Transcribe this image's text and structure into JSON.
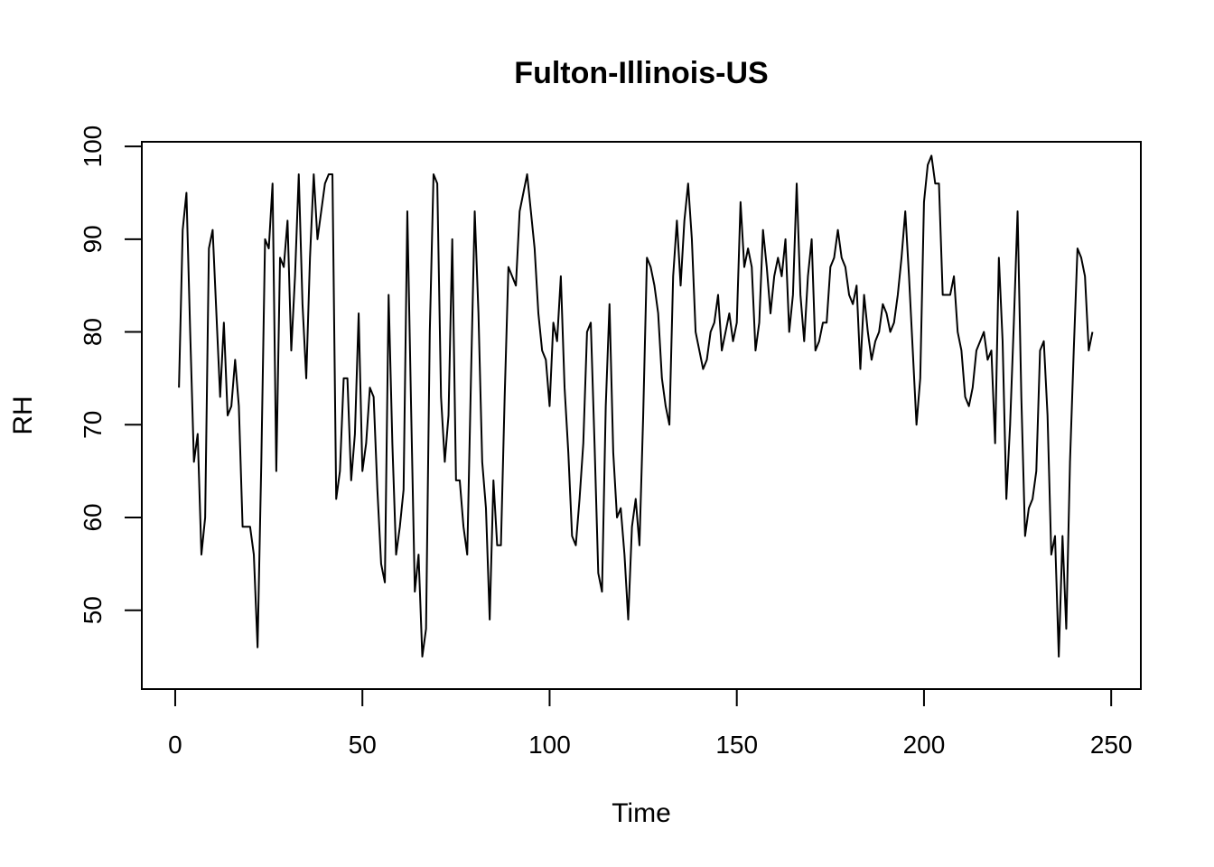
{
  "chart_data": {
    "type": "line",
    "title": "Fulton-Illinois-US",
    "xlabel": "Time",
    "ylabel": "RH",
    "xlim": [
      -8.92,
      257.92
    ],
    "ylim": [
      41.5,
      100.5
    ],
    "x_ticks": [
      0,
      50,
      100,
      150,
      200,
      250
    ],
    "y_ticks": [
      50,
      60,
      70,
      80,
      90,
      100
    ],
    "grid": false,
    "legend": "none",
    "colors": {
      "line": "#000000",
      "axes": "#000000",
      "background": "#ffffff"
    },
    "series": [
      {
        "x_start": 1,
        "values": [
          74.0,
          91.0,
          95.0,
          80.0,
          66.0,
          69.0,
          56.0,
          60.0,
          89.0,
          91.0,
          82.0,
          73.0,
          81.0,
          71.0,
          72.0,
          77.0,
          72.0,
          59.0,
          59.0,
          59.0,
          56.0,
          46.0,
          66.0,
          90.0,
          89.0,
          96.0,
          65.0,
          88.0,
          87.0,
          92.0,
          78.0,
          86.0,
          97.0,
          83.0,
          75.0,
          88.0,
          97.0,
          90.0,
          93.0,
          96.0,
          97.0,
          97.0,
          62.0,
          65.0,
          75.0,
          75.0,
          64.0,
          69.0,
          82.0,
          65.0,
          68.0,
          74.0,
          73.0,
          63.0,
          55.0,
          53.0,
          84.0,
          68.0,
          56.0,
          59.0,
          63.0,
          93.0,
          72.0,
          52.0,
          56.0,
          45.0,
          48.0,
          80.0,
          97.0,
          96.0,
          73.0,
          66.0,
          71.0,
          90.0,
          64.0,
          64.0,
          59.0,
          56.0,
          75.0,
          93.0,
          82.0,
          66.0,
          61.0,
          49.0,
          64.0,
          57.0,
          57.0,
          73.0,
          87.0,
          86.0,
          85.0,
          93.0,
          95.0,
          97.0,
          93.0,
          89.0,
          82.0,
          78.0,
          77.0,
          72.0,
          81.0,
          79.0,
          86.0,
          74.0,
          67.0,
          58.0,
          57.0,
          62.0,
          68.0,
          80.0,
          81.0,
          68.0,
          54.0,
          52.0,
          72.0,
          83.0,
          67.0,
          60.0,
          61.0,
          56.0,
          49.0,
          59.0,
          62.0,
          57.0,
          71.0,
          88.0,
          87.0,
          85.0,
          82.0,
          75.0,
          72.0,
          70.0,
          86.0,
          92.0,
          85.0,
          92.0,
          96.0,
          90.0,
          80.0,
          78.0,
          76.0,
          77.0,
          80.0,
          81.0,
          84.0,
          78.0,
          80.0,
          82.0,
          79.0,
          81.0,
          94.0,
          87.0,
          89.0,
          87.0,
          78.0,
          81.0,
          91.0,
          87.0,
          82.0,
          86.0,
          88.0,
          86.0,
          90.0,
          80.0,
          84.0,
          96.0,
          84.0,
          79.0,
          86.0,
          90.0,
          78.0,
          79.0,
          81.0,
          81.0,
          87.0,
          88.0,
          91.0,
          88.0,
          87.0,
          84.0,
          83.0,
          85.0,
          76.0,
          84.0,
          80.0,
          77.0,
          79.0,
          80.0,
          83.0,
          82.0,
          80.0,
          81.0,
          84.0,
          88.0,
          93.0,
          86.0,
          78.0,
          70.0,
          75.0,
          94.0,
          98.0,
          99.0,
          96.0,
          96.0,
          84.0,
          84.0,
          84.0,
          86.0,
          80.0,
          78.0,
          73.0,
          72.0,
          74.0,
          78.0,
          79.0,
          80.0,
          77.0,
          78.0,
          68.0,
          88.0,
          79.0,
          62.0,
          70.0,
          81.0,
          93.0,
          73.0,
          58.0,
          61.0,
          62.0,
          65.0,
          78.0,
          79.0,
          71.0,
          56.0,
          58.0,
          45.0,
          58.0,
          48.0,
          66.0,
          78.0,
          89.0,
          88.0,
          86.0,
          78.0,
          80.0
        ]
      }
    ]
  }
}
